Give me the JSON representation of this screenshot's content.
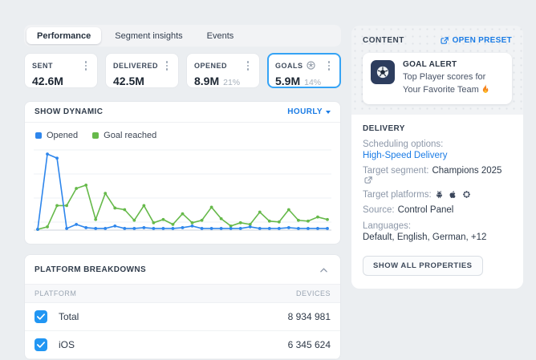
{
  "tabs": {
    "items": [
      {
        "label": "Performance",
        "active": true
      },
      {
        "label": "Segment insights",
        "active": false
      },
      {
        "label": "Events",
        "active": false
      }
    ]
  },
  "stats": {
    "cards": [
      {
        "label": "SENT",
        "value": "42.6M",
        "percent": ""
      },
      {
        "label": "DELIVERED",
        "value": "42.5M",
        "percent": ""
      },
      {
        "label": "OPENED",
        "value": "8.9M",
        "percent": "21%"
      },
      {
        "label": "GOALS",
        "value": "5.9M",
        "percent": "14%",
        "selected": true,
        "icon": "soccer-ball"
      }
    ]
  },
  "dynamics": {
    "title": "SHOW DYNAMIC",
    "interval": "HOURLY"
  },
  "chart_data": {
    "type": "line",
    "title": "SHOW DYNAMIC",
    "x_label": "hours (no tick labels shown)",
    "x": [
      0,
      1,
      2,
      3,
      4,
      5,
      6,
      7,
      8,
      9,
      10,
      11,
      12,
      13,
      14,
      15,
      16,
      17,
      18,
      19,
      20,
      21,
      22,
      23,
      24,
      25,
      26,
      27,
      28,
      29,
      30
    ],
    "series": [
      {
        "name": "Opened",
        "color": "#2e86ec",
        "values": [
          1,
          93,
          88,
          2,
          7,
          3,
          2,
          2,
          5,
          2,
          2,
          3,
          2,
          2,
          2,
          3,
          5,
          2,
          2,
          2,
          2,
          2,
          4,
          2,
          2,
          2,
          3,
          2,
          2,
          2,
          2
        ]
      },
      {
        "name": "Goal reached",
        "color": "#66b94a",
        "values": [
          1,
          4,
          30,
          30,
          51,
          55,
          13,
          45,
          27,
          25,
          12,
          30,
          9,
          13,
          7,
          20,
          9,
          12,
          28,
          14,
          5,
          9,
          7,
          22,
          11,
          10,
          25,
          12,
          11,
          16,
          13
        ]
      }
    ],
    "ylim": [
      0,
      100
    ],
    "y_unit": "relative (percent of plot height, no y-axis labels shown)",
    "grid": true,
    "legend_position": "top-left"
  },
  "platform_breakdowns": {
    "title": "PLATFORM BREAKDOWNS",
    "columns": {
      "platform": "PLATFORM",
      "devices": "DEVICES"
    },
    "rows": [
      {
        "name": "Total",
        "devices": "8 934 981",
        "checked": true
      },
      {
        "name": "iOS",
        "devices": "6 345 624",
        "checked": true
      }
    ]
  },
  "content_panel": {
    "title": "CONTENT",
    "open_preset_label": "OPEN PRESET",
    "alert": {
      "icon": "soccer-ball",
      "title": "GOAL ALERT",
      "text": "Top Player scores for Your Favorite Team",
      "emoji": "fire"
    },
    "delivery": {
      "title": "DELIVERY",
      "properties": [
        {
          "label": "Scheduling options:",
          "value": "High-Speed Delivery",
          "value_type": "link"
        },
        {
          "label": "Target segment:",
          "value": "Champions 2025",
          "external_link": true
        },
        {
          "label": "Target platforms:",
          "value": "",
          "icons": [
            "android",
            "apple",
            "huawei"
          ]
        },
        {
          "label": "Source:",
          "value": "Control Panel"
        },
        {
          "label": "Languages:",
          "value": "Default, English, German, +12"
        }
      ],
      "show_all_label": "SHOW ALL PROPERTIES"
    }
  },
  "colors": {
    "accent_blue": "#1b7ce5",
    "selected_card_border": "#35a3f5",
    "checkbox_blue": "#2196f3",
    "opened_line": "#2e86ec",
    "goal_line": "#66b94a",
    "page_background": "#ebeef1"
  }
}
